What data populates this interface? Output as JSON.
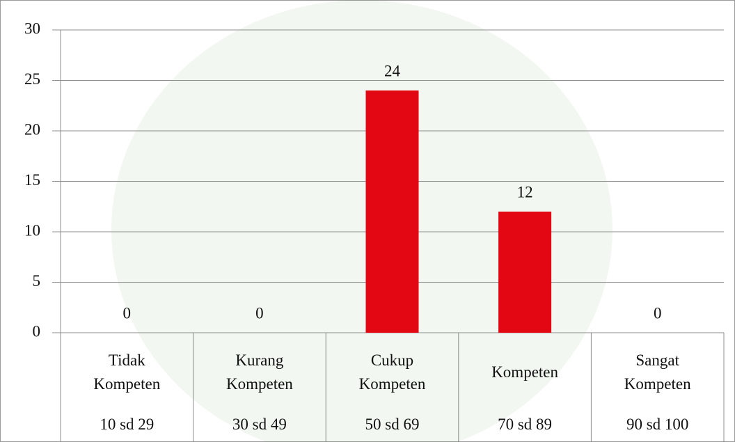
{
  "chart_data": {
    "type": "bar",
    "categories": [
      "Tidak Kompeten",
      "Kurang Kompeten",
      "Cukup Kompeten",
      "Kompeten",
      "Sangat Kompeten"
    ],
    "ranges": [
      "10 sd 29",
      "30 sd 49",
      "50 sd 69",
      "70 sd 89",
      "90 sd 100"
    ],
    "values": [
      0,
      0,
      24,
      12,
      0
    ],
    "color": "#e30613",
    "ylim": [
      0,
      30
    ],
    "yticks": [
      0,
      5,
      10,
      15,
      20,
      25,
      30
    ],
    "grid": true
  }
}
